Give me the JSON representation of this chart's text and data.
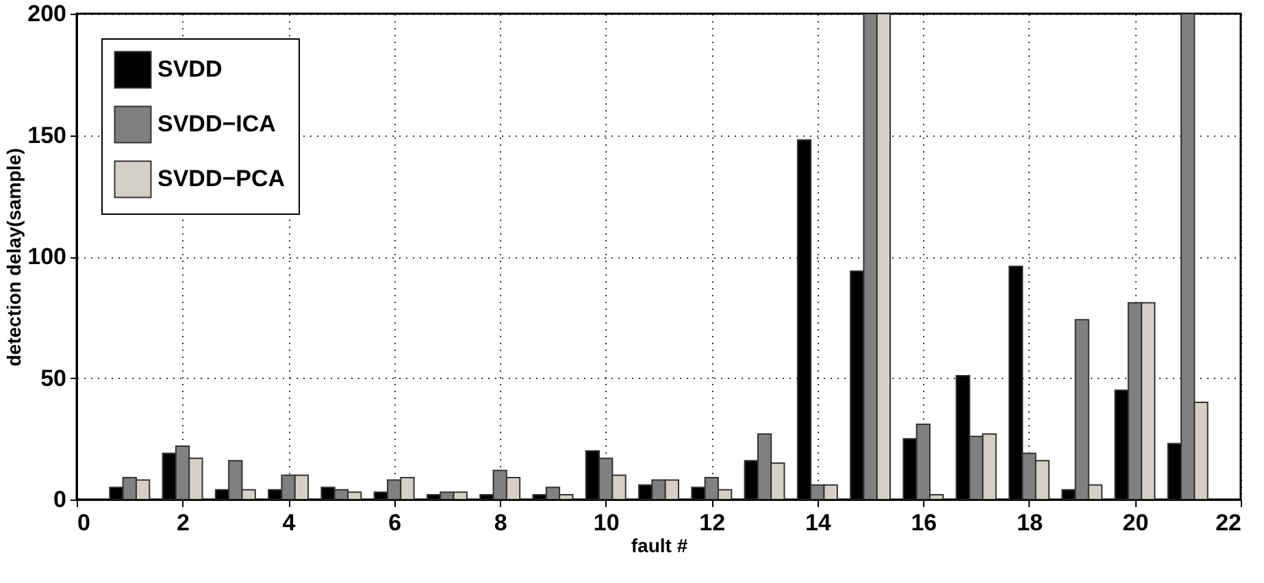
{
  "chart_data": {
    "type": "bar",
    "xlabel": "fault #",
    "ylabel": "detection delay(sample)",
    "x": [
      1,
      2,
      3,
      4,
      5,
      6,
      7,
      8,
      9,
      10,
      11,
      12,
      13,
      14,
      15,
      16,
      17,
      18,
      19,
      20,
      21
    ],
    "series": [
      {
        "name": "SVDD",
        "color": "#000000",
        "values": [
          5,
          19,
          4,
          4,
          5,
          3,
          2,
          2,
          2,
          20,
          6,
          5,
          16,
          148,
          94,
          25,
          51,
          96,
          4,
          45,
          23
        ]
      },
      {
        "name": "SVDD−ICA",
        "color": "#808080",
        "values": [
          9,
          22,
          16,
          10,
          4,
          8,
          3,
          12,
          5,
          17,
          8,
          9,
          27,
          6,
          200,
          31,
          26,
          19,
          74,
          81,
          200
        ]
      },
      {
        "name": "SVDD−PCA",
        "color": "#d4d0c8",
        "values": [
          8,
          17,
          4,
          10,
          3,
          9,
          3,
          9,
          2,
          10,
          8,
          4,
          15,
          6,
          200,
          2,
          27,
          16,
          6,
          81,
          40
        ]
      }
    ],
    "xlim": [
      0,
      22
    ],
    "xticks": [
      0,
      2,
      4,
      6,
      8,
      10,
      12,
      14,
      16,
      18,
      20,
      22
    ],
    "ylim": [
      0,
      200
    ],
    "yticks": [
      0,
      50,
      100,
      150,
      200
    ],
    "grid": true,
    "legend": "top left"
  }
}
